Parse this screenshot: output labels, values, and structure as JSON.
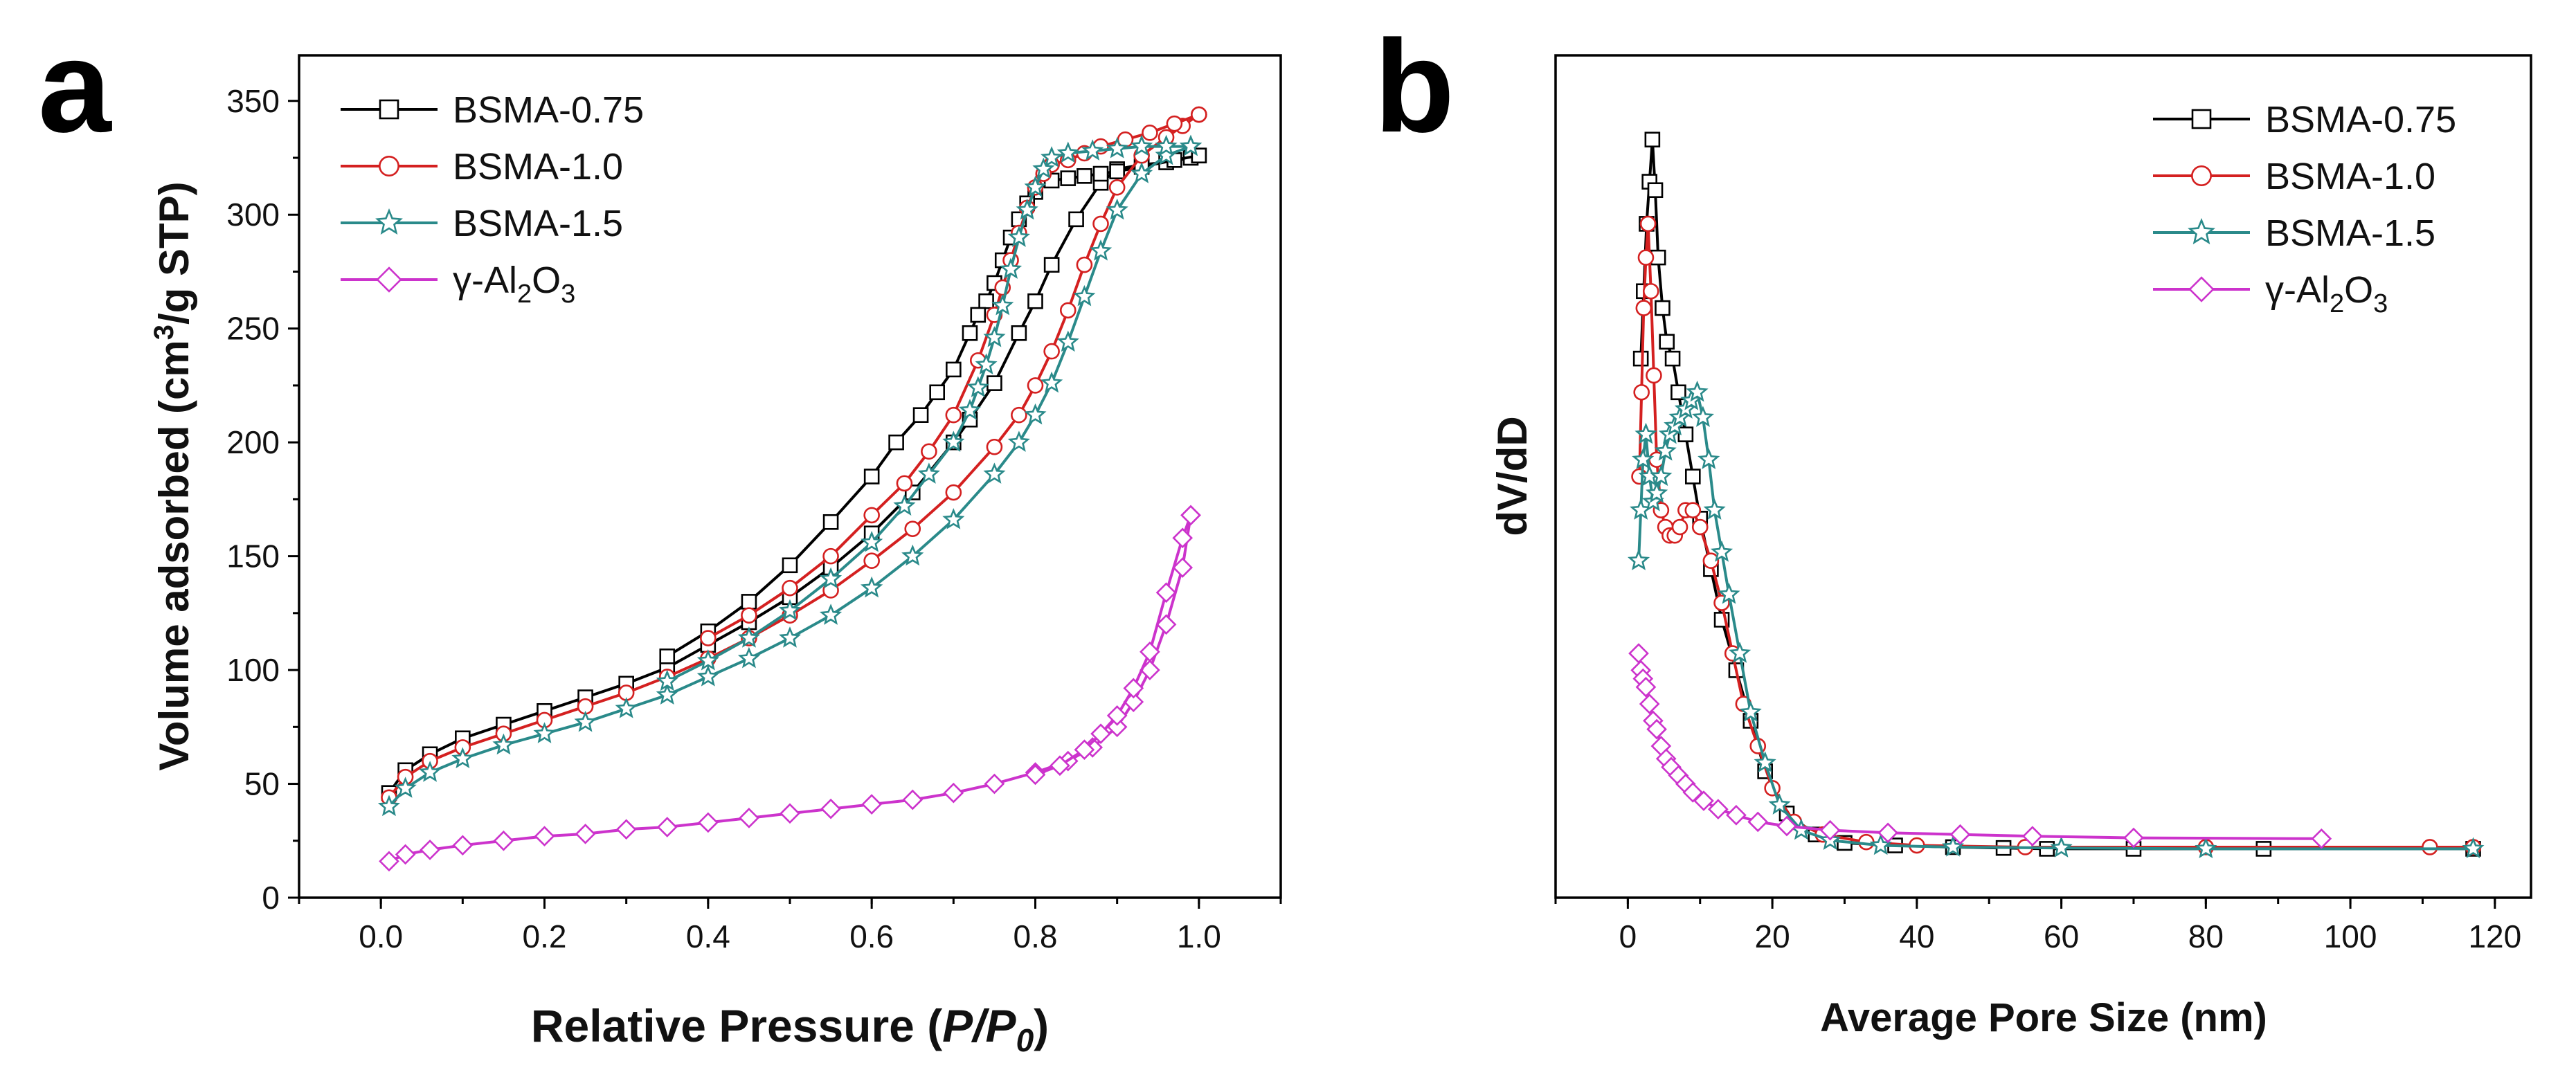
{
  "chart_data": [
    {
      "panel": "a",
      "type": "line",
      "title": "",
      "xlabel": {
        "prefix": "Relative Pressure (",
        "italic": "P/P",
        "sub": "0",
        "suffix": ")"
      },
      "ylabel": {
        "prefix": "Volume adsorbed (cm",
        "sup": "3",
        "suffix": "/g STP)"
      },
      "xlim": [
        -0.1,
        1.1
      ],
      "ylim": [
        0,
        370
      ],
      "xticks": [
        0.0,
        0.2,
        0.4,
        0.6,
        0.8,
        1.0
      ],
      "xtick_labels": [
        "0.0",
        "0.2",
        "0.4",
        "0.6",
        "0.8",
        "1.0"
      ],
      "yticks": [
        0,
        50,
        100,
        150,
        200,
        250,
        300,
        350
      ],
      "ytick_labels": [
        "0",
        "50",
        "100",
        "150",
        "200",
        "250",
        "300",
        "350"
      ],
      "grid": false,
      "legend_position": "top-left",
      "series": [
        {
          "name": "BSMA-0.75",
          "color": "#000000",
          "marker": "square",
          "adsorption": {
            "x": [
              0.01,
              0.03,
              0.06,
              0.1,
              0.15,
              0.2,
              0.25,
              0.3,
              0.35,
              0.4,
              0.45,
              0.5,
              0.55,
              0.6,
              0.65,
              0.7,
              0.72,
              0.75,
              0.78,
              0.8,
              0.82,
              0.85,
              0.88,
              0.9,
              0.93,
              0.96,
              0.99,
              1.0
            ],
            "y": [
              46,
              56,
              63,
              70,
              76,
              82,
              88,
              94,
              101,
              111,
              121,
              132,
              145,
              160,
              178,
              200,
              210,
              226,
              248,
              262,
              278,
              298,
              314,
              320,
              322,
              323,
              325,
              326
            ]
          },
          "desorption": {
            "x": [
              1.0,
              0.97,
              0.93,
              0.9,
              0.88,
              0.86,
              0.84,
              0.82,
              0.8,
              0.79,
              0.78,
              0.77,
              0.76,
              0.75,
              0.74,
              0.73,
              0.72,
              0.7,
              0.68,
              0.66,
              0.63,
              0.6,
              0.55,
              0.5,
              0.45,
              0.4,
              0.35
            ],
            "y": [
              326,
              324,
              321,
              319,
              318,
              317,
              316,
              315,
              310,
              305,
              298,
              290,
              280,
              270,
              262,
              256,
              248,
              232,
              222,
              212,
              200,
              185,
              165,
              146,
              130,
              117,
              106
            ]
          }
        },
        {
          "name": "BSMA-1.0",
          "color": "#d42020",
          "marker": "circle",
          "adsorption": {
            "x": [
              0.01,
              0.03,
              0.06,
              0.1,
              0.15,
              0.2,
              0.25,
              0.3,
              0.35,
              0.4,
              0.45,
              0.5,
              0.55,
              0.6,
              0.65,
              0.7,
              0.75,
              0.78,
              0.8,
              0.82,
              0.84,
              0.86,
              0.88,
              0.9,
              0.93,
              0.96,
              0.98,
              1.0
            ],
            "y": [
              44,
              53,
              60,
              66,
              72,
              78,
              84,
              90,
              97,
              105,
              114,
              124,
              135,
              148,
              162,
              178,
              198,
              212,
              225,
              240,
              258,
              278,
              296,
              312,
              326,
              334,
              339,
              344
            ]
          },
          "desorption": {
            "x": [
              1.0,
              0.97,
              0.94,
              0.91,
              0.88,
              0.86,
              0.84,
              0.82,
              0.81,
              0.8,
              0.79,
              0.78,
              0.77,
              0.76,
              0.75,
              0.73,
              0.7,
              0.67,
              0.64,
              0.6,
              0.55,
              0.5,
              0.45,
              0.4
            ],
            "y": [
              344,
              340,
              336,
              333,
              330,
              327,
              324,
              322,
              318,
              312,
              303,
              292,
              280,
              268,
              256,
              236,
              212,
              196,
              182,
              168,
              150,
              136,
              124,
              114
            ]
          }
        },
        {
          "name": "BSMA-1.5",
          "color": "#2a8a8a",
          "marker": "star",
          "adsorption": {
            "x": [
              0.01,
              0.03,
              0.06,
              0.1,
              0.15,
              0.2,
              0.25,
              0.3,
              0.35,
              0.4,
              0.45,
              0.5,
              0.55,
              0.6,
              0.65,
              0.7,
              0.75,
              0.78,
              0.8,
              0.82,
              0.84,
              0.86,
              0.88,
              0.9,
              0.93,
              0.96,
              0.99
            ],
            "y": [
              40,
              48,
              55,
              61,
              67,
              72,
              77,
              83,
              89,
              97,
              105,
              114,
              124,
              136,
              150,
              166,
              186,
              200,
              212,
              226,
              244,
              264,
              284,
              302,
              318,
              326,
              330
            ]
          },
          "desorption": {
            "x": [
              0.99,
              0.96,
              0.93,
              0.9,
              0.87,
              0.84,
              0.82,
              0.81,
              0.8,
              0.79,
              0.78,
              0.77,
              0.76,
              0.75,
              0.74,
              0.73,
              0.72,
              0.7,
              0.67,
              0.64,
              0.6,
              0.55,
              0.5,
              0.45,
              0.4,
              0.35
            ],
            "y": [
              330,
              330,
              330,
              329,
              328,
              327,
              325,
              320,
              312,
              302,
              290,
              276,
              260,
              246,
              234,
              224,
              214,
              200,
              186,
              172,
              156,
              140,
              126,
              114,
              104,
              95
            ]
          }
        },
        {
          "name": "γ-Al2O3",
          "label_prefix": "γ-Al",
          "label_sub1": "2",
          "label_mid": "O",
          "label_sub2": "3",
          "color": "#cc33cc",
          "marker": "diamond",
          "adsorption": {
            "x": [
              0.01,
              0.03,
              0.06,
              0.1,
              0.15,
              0.2,
              0.25,
              0.3,
              0.35,
              0.4,
              0.45,
              0.5,
              0.55,
              0.6,
              0.65,
              0.7,
              0.75,
              0.8,
              0.84,
              0.87,
              0.9,
              0.92,
              0.94,
              0.96,
              0.98,
              0.99
            ],
            "y": [
              16,
              19,
              21,
              23,
              25,
              27,
              28,
              30,
              31,
              33,
              35,
              37,
              39,
              41,
              43,
              46,
              50,
              55,
              60,
              66,
              75,
              86,
              100,
              120,
              145,
              168
            ]
          },
          "desorption": {
            "x": [
              0.99,
              0.98,
              0.96,
              0.94,
              0.92,
              0.9,
              0.88,
              0.86,
              0.83,
              0.8
            ],
            "y": [
              168,
              158,
              134,
              108,
              92,
              80,
              72,
              65,
              58,
              54
            ]
          }
        }
      ]
    },
    {
      "panel": "b",
      "type": "line",
      "title": "",
      "xlabel": "Average Pore Size (nm)",
      "ylabel": "dV/dD",
      "xlim": [
        -10,
        125
      ],
      "ylim": [
        0,
        1
      ],
      "xticks": [
        0,
        20,
        40,
        60,
        80,
        100,
        120
      ],
      "xtick_labels": [
        "0",
        "20",
        "40",
        "60",
        "80",
        "100",
        "120"
      ],
      "yticks": [],
      "grid": false,
      "legend_position": "top-right",
      "series": [
        {
          "name": "BSMA-0.75",
          "color": "#000000",
          "marker": "square",
          "x": [
            1.8,
            2.2,
            2.6,
            3.0,
            3.4,
            3.8,
            4.2,
            4.8,
            5.4,
            6.2,
            7.0,
            8.0,
            9.0,
            10.0,
            11.5,
            13.0,
            15.0,
            17.0,
            19.0,
            22.0,
            26.0,
            30.0,
            37.0,
            45.0,
            52.0,
            58.0,
            70.0,
            88.0,
            117.0
          ],
          "y": [
            0.64,
            0.72,
            0.8,
            0.85,
            0.9,
            0.84,
            0.76,
            0.7,
            0.66,
            0.64,
            0.6,
            0.55,
            0.5,
            0.45,
            0.39,
            0.33,
            0.27,
            0.21,
            0.15,
            0.1,
            0.075,
            0.065,
            0.062,
            0.06,
            0.059,
            0.058,
            0.058,
            0.058,
            0.058
          ]
        },
        {
          "name": "BSMA-1.0",
          "color": "#d42020",
          "marker": "circle",
          "x": [
            1.6,
            1.9,
            2.2,
            2.5,
            2.8,
            3.2,
            3.6,
            4.0,
            4.6,
            5.2,
            5.8,
            6.5,
            7.2,
            8.0,
            9.0,
            10.0,
            11.5,
            13.0,
            14.5,
            16.0,
            18.0,
            20.0,
            23.0,
            27.0,
            33.0,
            40.0,
            55.0,
            80.0,
            111.0,
            117.0
          ],
          "y": [
            0.5,
            0.6,
            0.7,
            0.76,
            0.8,
            0.72,
            0.62,
            0.52,
            0.46,
            0.44,
            0.43,
            0.43,
            0.44,
            0.46,
            0.46,
            0.44,
            0.4,
            0.35,
            0.29,
            0.23,
            0.18,
            0.13,
            0.09,
            0.075,
            0.066,
            0.062,
            0.06,
            0.06,
            0.06,
            0.06
          ]
        },
        {
          "name": "BSMA-1.5",
          "color": "#2a8a8a",
          "marker": "star",
          "x": [
            1.5,
            1.8,
            2.1,
            2.5,
            3.0,
            3.5,
            4.0,
            4.6,
            5.2,
            5.8,
            6.5,
            7.2,
            8.0,
            8.8,
            9.6,
            10.4,
            11.2,
            12.0,
            13.0,
            14.0,
            15.5,
            17.0,
            19.0,
            21.0,
            24.0,
            28.0,
            35.0,
            45.0,
            60.0,
            80.0,
            117.0
          ],
          "y": [
            0.4,
            0.46,
            0.52,
            0.55,
            0.5,
            0.47,
            0.48,
            0.5,
            0.53,
            0.55,
            0.56,
            0.57,
            0.58,
            0.59,
            0.6,
            0.57,
            0.52,
            0.46,
            0.41,
            0.36,
            0.29,
            0.22,
            0.16,
            0.11,
            0.08,
            0.068,
            0.062,
            0.06,
            0.059,
            0.058,
            0.058
          ]
        },
        {
          "name": "γ-Al2O3",
          "label_prefix": "γ-Al",
          "label_sub1": "2",
          "label_mid": "O",
          "label_sub2": "3",
          "color": "#cc33cc",
          "marker": "diamond",
          "x": [
            1.5,
            1.8,
            2.1,
            2.5,
            3.0,
            3.5,
            4.0,
            4.6,
            5.3,
            6.0,
            7.0,
            8.0,
            9.0,
            10.5,
            12.5,
            15.0,
            18.0,
            22.0,
            28.0,
            36.0,
            46.0,
            56.0,
            70.0,
            96.0
          ],
          "y": [
            0.29,
            0.27,
            0.26,
            0.25,
            0.23,
            0.21,
            0.2,
            0.18,
            0.165,
            0.155,
            0.145,
            0.135,
            0.125,
            0.115,
            0.105,
            0.098,
            0.09,
            0.085,
            0.08,
            0.077,
            0.075,
            0.073,
            0.071,
            0.07
          ]
        }
      ]
    }
  ]
}
